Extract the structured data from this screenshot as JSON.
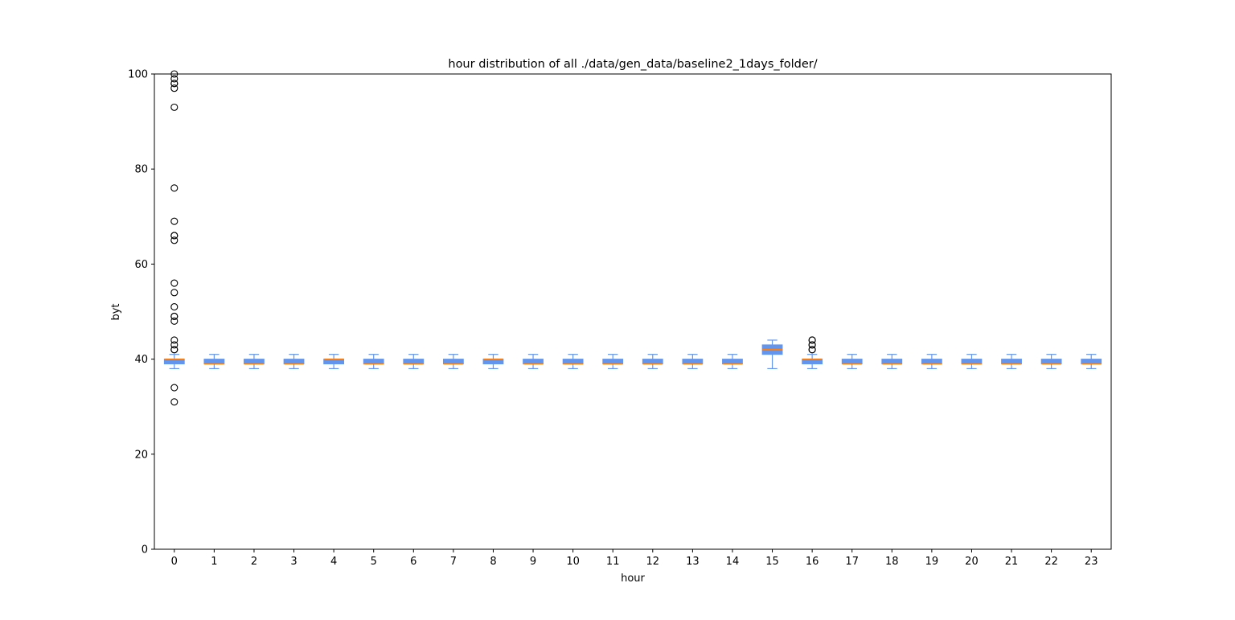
{
  "chart_data": {
    "type": "box",
    "title": "hour distribution of all ./data/gen_data/baseline2_1days_folder/",
    "xlabel": "hour",
    "ylabel": "byt",
    "ylim": [
      0,
      100
    ],
    "yticks": [
      0,
      20,
      40,
      60,
      80,
      100
    ],
    "grid": false,
    "legend": "none",
    "colors": {
      "box": "#6495ed",
      "median": "#ff7f0e",
      "outlier_edge": "#000000"
    },
    "boxes": [
      {
        "category": "0",
        "whisker_low": 38,
        "q1": 39,
        "median": 40,
        "q3": 40,
        "whisker_high": 41,
        "outliers": [
          31,
          34,
          42,
          42,
          43,
          44,
          48,
          49,
          49,
          51,
          54,
          56,
          65,
          66,
          66,
          69,
          76,
          93,
          97,
          98,
          98,
          99,
          100
        ]
      },
      {
        "category": "1",
        "whisker_low": 38,
        "q1": 39,
        "median": 39,
        "q3": 40,
        "whisker_high": 41,
        "outliers": []
      },
      {
        "category": "2",
        "whisker_low": 38,
        "q1": 39,
        "median": 39,
        "q3": 40,
        "whisker_high": 41,
        "outliers": []
      },
      {
        "category": "3",
        "whisker_low": 38,
        "q1": 39,
        "median": 39,
        "q3": 40,
        "whisker_high": 41,
        "outliers": []
      },
      {
        "category": "4",
        "whisker_low": 38,
        "q1": 39,
        "median": 40,
        "q3": 40,
        "whisker_high": 41,
        "outliers": []
      },
      {
        "category": "5",
        "whisker_low": 38,
        "q1": 39,
        "median": 39,
        "q3": 40,
        "whisker_high": 41,
        "outliers": []
      },
      {
        "category": "6",
        "whisker_low": 38,
        "q1": 39,
        "median": 39,
        "q3": 40,
        "whisker_high": 41,
        "outliers": []
      },
      {
        "category": "7",
        "whisker_low": 38,
        "q1": 39,
        "median": 39,
        "q3": 40,
        "whisker_high": 41,
        "outliers": []
      },
      {
        "category": "8",
        "whisker_low": 38,
        "q1": 39,
        "median": 40,
        "q3": 40,
        "whisker_high": 41,
        "outliers": []
      },
      {
        "category": "9",
        "whisker_low": 38,
        "q1": 39,
        "median": 39,
        "q3": 40,
        "whisker_high": 41,
        "outliers": []
      },
      {
        "category": "10",
        "whisker_low": 38,
        "q1": 39,
        "median": 39,
        "q3": 40,
        "whisker_high": 41,
        "outliers": []
      },
      {
        "category": "11",
        "whisker_low": 38,
        "q1": 39,
        "median": 39,
        "q3": 40,
        "whisker_high": 41,
        "outliers": []
      },
      {
        "category": "12",
        "whisker_low": 38,
        "q1": 39,
        "median": 39,
        "q3": 40,
        "whisker_high": 41,
        "outliers": []
      },
      {
        "category": "13",
        "whisker_low": 38,
        "q1": 39,
        "median": 39,
        "q3": 40,
        "whisker_high": 41,
        "outliers": []
      },
      {
        "category": "14",
        "whisker_low": 38,
        "q1": 39,
        "median": 39,
        "q3": 40,
        "whisker_high": 41,
        "outliers": []
      },
      {
        "category": "15",
        "whisker_low": 38,
        "q1": 41,
        "median": 42,
        "q3": 43,
        "whisker_high": 44,
        "outliers": []
      },
      {
        "category": "16",
        "whisker_low": 38,
        "q1": 39,
        "median": 40,
        "q3": 40,
        "whisker_high": 41,
        "outliers": [
          42,
          42,
          43,
          43,
          44,
          44
        ]
      },
      {
        "category": "17",
        "whisker_low": 38,
        "q1": 39,
        "median": 39,
        "q3": 40,
        "whisker_high": 41,
        "outliers": []
      },
      {
        "category": "18",
        "whisker_low": 38,
        "q1": 39,
        "median": 39,
        "q3": 40,
        "whisker_high": 41,
        "outliers": []
      },
      {
        "category": "19",
        "whisker_low": 38,
        "q1": 39,
        "median": 39,
        "q3": 40,
        "whisker_high": 41,
        "outliers": []
      },
      {
        "category": "20",
        "whisker_low": 38,
        "q1": 39,
        "median": 39,
        "q3": 40,
        "whisker_high": 41,
        "outliers": []
      },
      {
        "category": "21",
        "whisker_low": 38,
        "q1": 39,
        "median": 39,
        "q3": 40,
        "whisker_high": 41,
        "outliers": []
      },
      {
        "category": "22",
        "whisker_low": 38,
        "q1": 39,
        "median": 39,
        "q3": 40,
        "whisker_high": 41,
        "outliers": []
      },
      {
        "category": "23",
        "whisker_low": 38,
        "q1": 39,
        "median": 39,
        "q3": 40,
        "whisker_high": 41,
        "outliers": []
      }
    ]
  }
}
